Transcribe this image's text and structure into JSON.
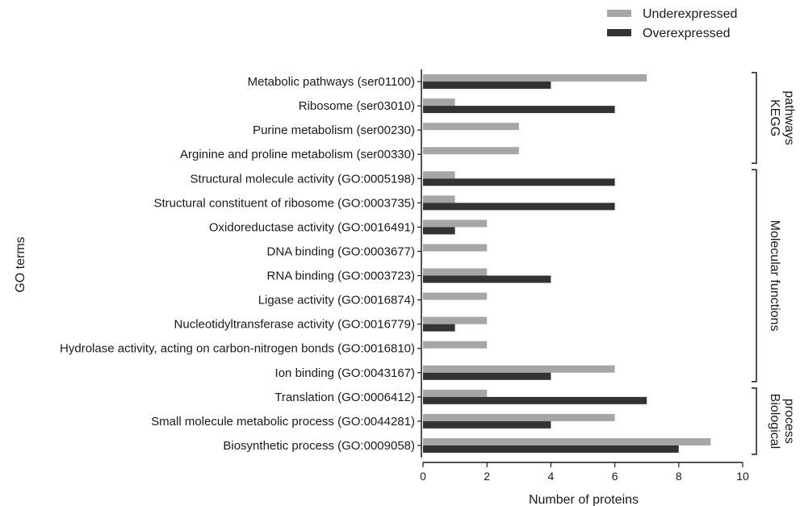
{
  "chart_data": {
    "type": "bar",
    "orientation": "horizontal",
    "xlabel": "Number of proteins",
    "ylabel": "GO terms",
    "xlim": [
      0,
      10
    ],
    "xticks": [
      0,
      2,
      4,
      6,
      8,
      10
    ],
    "grid": false,
    "legend_position": "top-right",
    "categories": [
      "Metabolic pathways (ser01100)",
      "Ribosome (ser03010)",
      "Purine metabolism (ser00230)",
      "Arginine and proline metabolism (ser00330)",
      "Structural molecule activity (GO:0005198)",
      "Structural constituent of ribosome (GO:0003735)",
      "Oxidoreductase activity (GO:0016491)",
      "DNA binding (GO:0003677)",
      "RNA binding (GO:0003723)",
      "Ligase activity (GO:0016874)",
      "Nucleotidyltransferase activity (GO:0016779)",
      "Hydrolase activity, acting on carbon-nitrogen bonds (GO:0016810)",
      "Ion binding (GO:0043167)",
      "Translation (GO:0006412)",
      "Small molecule metabolic process (GO:0044281)",
      "Biosynthetic process (GO:0009058)"
    ],
    "series": [
      {
        "name": "Underexpressed",
        "color": "#a6a6a6",
        "values": [
          7,
          1,
          3,
          3,
          1,
          1,
          2,
          2,
          2,
          2,
          2,
          2,
          6,
          2,
          6,
          9
        ]
      },
      {
        "name": "Overexpressed",
        "color": "#333333",
        "values": [
          4,
          6,
          0,
          0,
          6,
          6,
          1,
          0,
          4,
          0,
          1,
          0,
          4,
          7,
          4,
          8
        ]
      }
    ],
    "groups": [
      {
        "label_lines": [
          "KEGG",
          "pathways"
        ],
        "start": 0,
        "end": 3
      },
      {
        "label_lines": [
          "Molecular functions"
        ],
        "start": 4,
        "end": 12
      },
      {
        "label_lines": [
          "Biological",
          "process"
        ],
        "start": 13,
        "end": 15
      }
    ]
  }
}
